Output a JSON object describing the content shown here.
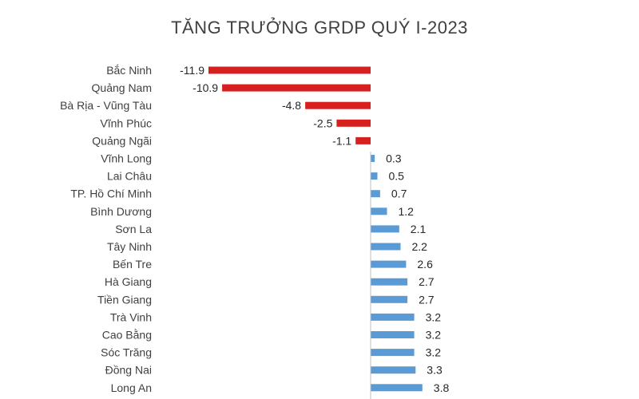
{
  "chart_data": {
    "type": "bar",
    "orientation": "horizontal",
    "title": "TĂNG TRƯỞNG GRDP QUÝ I-2023",
    "xlabel": "",
    "ylabel": "",
    "grid": false,
    "categories": [
      "Bắc Ninh",
      "Quảng Nam",
      "Bà Rịa - Vũng Tàu",
      "Vĩnh Phúc",
      "Quảng Ngãi",
      "Vĩnh Long",
      "Lai Châu",
      "TP. Hồ Chí Minh",
      "Bình Dương",
      "Sơn La",
      "Tây Ninh",
      "Bến Tre",
      "Hà Giang",
      "Tiền Giang",
      "Trà Vinh",
      "Cao Bằng",
      "Sóc Trăng",
      "Đồng Nai",
      "Long An"
    ],
    "values": [
      -11.9,
      -10.9,
      -4.8,
      -2.5,
      -1.1,
      0.3,
      0.5,
      0.7,
      1.2,
      2.1,
      2.2,
      2.6,
      2.7,
      2.7,
      3.2,
      3.2,
      3.2,
      3.3,
      3.8
    ],
    "value_labels": [
      "-11.9",
      "-10.9",
      "-4.8",
      "-2.5",
      "-1.1",
      "0.3",
      "0.5",
      "0.7",
      "1.2",
      "2.1",
      "2.2",
      "2.6",
      "2.7",
      "2.7",
      "3.2",
      "3.2",
      "3.2",
      "3.3",
      "3.8"
    ],
    "colors": {
      "negative": "#D62020",
      "positive": "#5B9BD5",
      "axis": "#BFBFBF"
    }
  }
}
